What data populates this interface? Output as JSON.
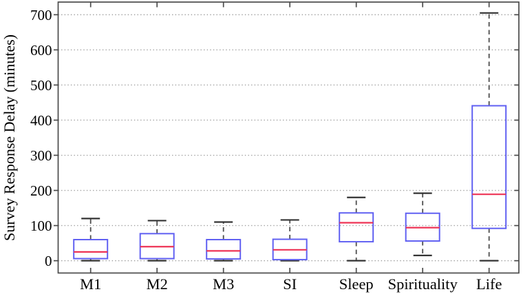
{
  "chart_data": {
    "type": "boxplot",
    "title": "",
    "ylabel": "Survey Response Delay (minutes)",
    "xlabel": "",
    "categories": [
      "M1",
      "M2",
      "M3",
      "SI",
      "Sleep",
      "Spirituality",
      "Life"
    ],
    "boxes": [
      {
        "label": "M1",
        "whisker_low": 0,
        "q1": 6,
        "median": 25,
        "q3": 60,
        "whisker_high": 120
      },
      {
        "label": "M2",
        "whisker_low": 0,
        "q1": 6,
        "median": 40,
        "q3": 77,
        "whisker_high": 114
      },
      {
        "label": "M3",
        "whisker_low": 0,
        "q1": 5,
        "median": 28,
        "q3": 60,
        "whisker_high": 110
      },
      {
        "label": "SI",
        "whisker_low": 0,
        "q1": 3,
        "median": 31,
        "q3": 61,
        "whisker_high": 116
      },
      {
        "label": "Sleep",
        "whisker_low": 0,
        "q1": 54,
        "median": 108,
        "q3": 136,
        "whisker_high": 180
      },
      {
        "label": "Spirituality",
        "whisker_low": 15,
        "q1": 56,
        "median": 94,
        "q3": 135,
        "whisker_high": 192
      },
      {
        "label": "Life",
        "whisker_low": 0,
        "q1": 92,
        "median": 189,
        "q3": 441,
        "whisker_high": 705
      }
    ],
    "yticks": [
      0,
      100,
      200,
      300,
      400,
      500,
      600,
      700
    ],
    "ylim": [
      -35,
      736
    ],
    "grid": "horizontal-dotted",
    "legend": "none",
    "colors": {
      "box": "#6060f2",
      "median": "#ee3355",
      "whisker": "#4d4d4d",
      "cap": "#333333",
      "axis": "#4a4a4a",
      "grid": "#a0a0a0",
      "text": "#000000",
      "background": "#ffffff"
    }
  }
}
